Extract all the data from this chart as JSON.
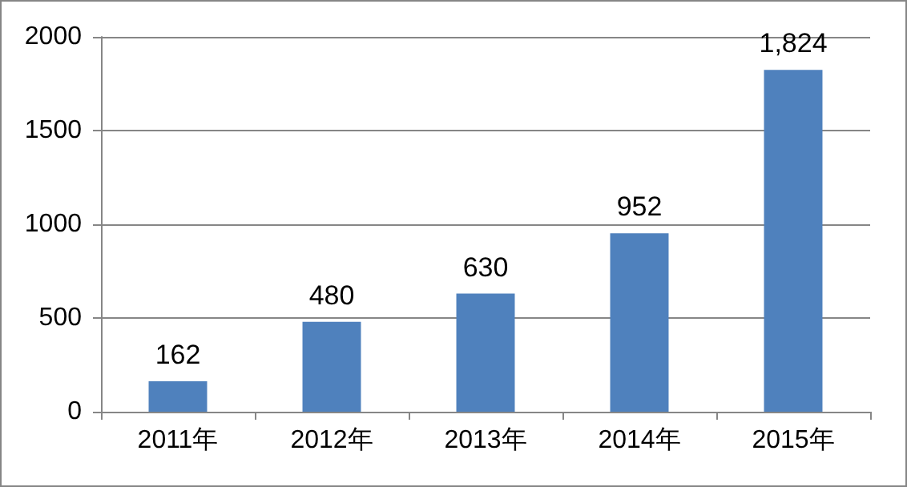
{
  "chart_data": {
    "type": "bar",
    "categories": [
      "2011年",
      "2012年",
      "2013年",
      "2014年",
      "2015年"
    ],
    "values": [
      162,
      480,
      630,
      952,
      1824
    ],
    "value_labels": [
      "162",
      "480",
      "630",
      "952",
      "1,824"
    ],
    "color": "#4f81bd",
    "ylim": [
      0,
      2000
    ],
    "yticks": [
      0,
      500,
      1000,
      1500,
      2000
    ],
    "grid": "y"
  }
}
